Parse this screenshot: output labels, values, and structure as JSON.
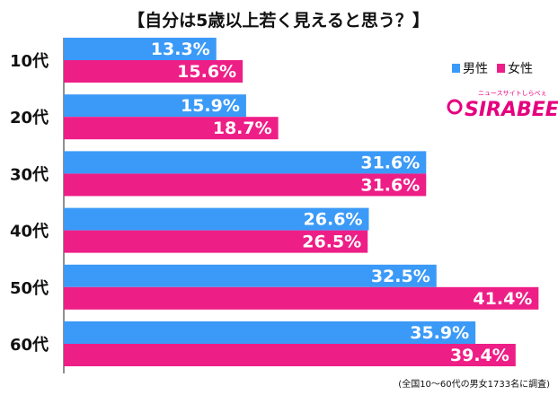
{
  "chart_data": {
    "type": "bar",
    "orientation": "horizontal",
    "title": "【自分は5歳以上若く見えると思う？】",
    "categories": [
      "10代",
      "20代",
      "30代",
      "40代",
      "50代",
      "60代"
    ],
    "series": [
      {
        "name": "男性",
        "color": "#3b9af7",
        "values": [
          13.3,
          15.9,
          31.6,
          26.6,
          32.5,
          35.9
        ],
        "labels": [
          "13.3%",
          "15.9%",
          "31.6%",
          "26.6%",
          "32.5%",
          "35.9%"
        ]
      },
      {
        "name": "女性",
        "color": "#ee1e87",
        "values": [
          15.6,
          18.7,
          31.6,
          26.5,
          41.4,
          39.4
        ],
        "labels": [
          "15.6%",
          "18.7%",
          "31.6%",
          "26.5%",
          "41.4%",
          "39.4%"
        ]
      }
    ],
    "xlim": [
      0,
      42
    ],
    "grid": false,
    "legend_position": "top-right",
    "footnote": "(全国10〜60代の男女1733名に調査)"
  },
  "logo": {
    "text": "SIRABEE",
    "subtext": "ニュースサイトしらべぇ"
  }
}
